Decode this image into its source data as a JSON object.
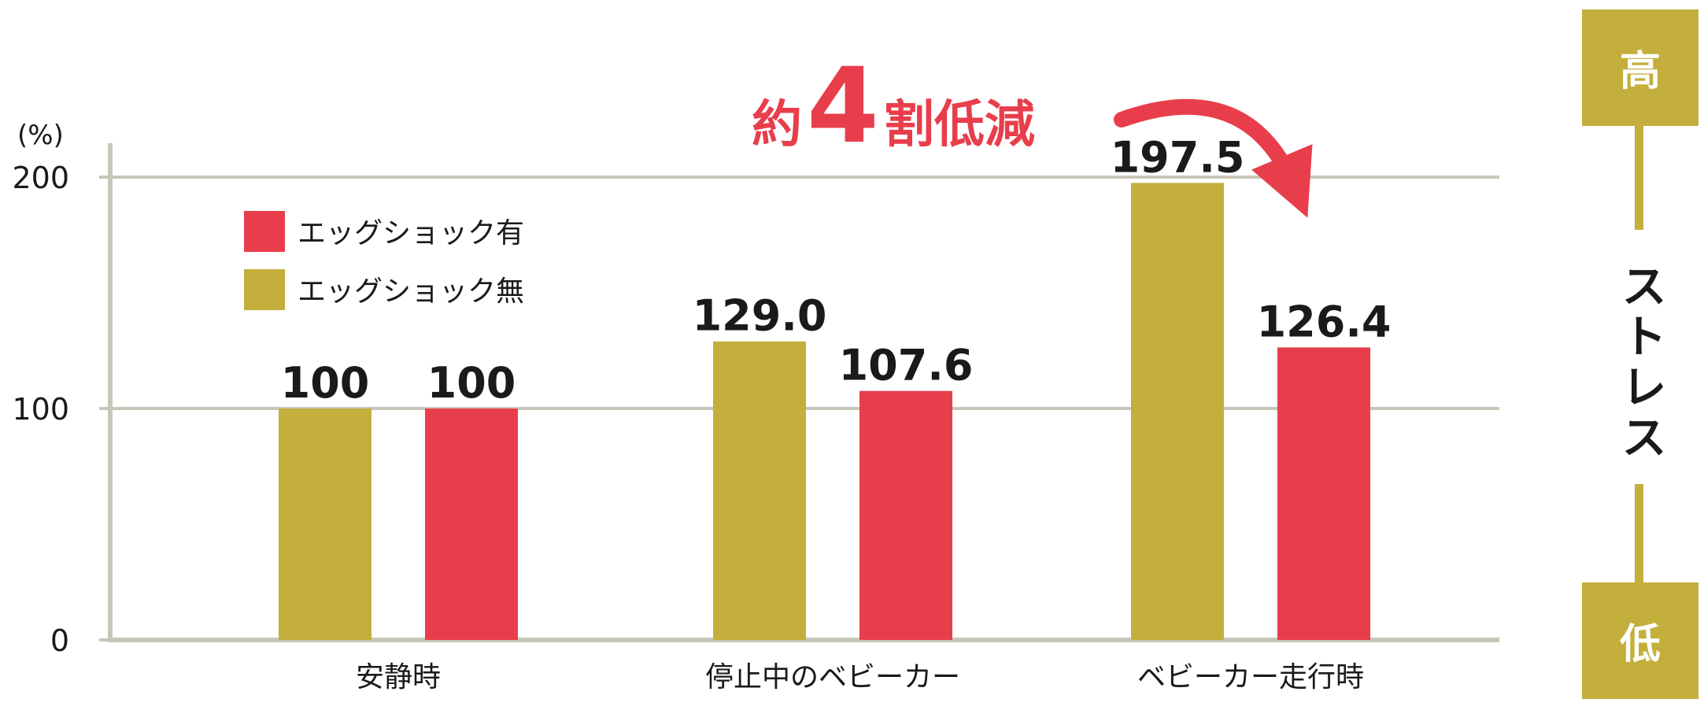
{
  "chart_data": {
    "type": "bar",
    "categories": [
      "安静時",
      "停止中のベビーカー",
      "ベビーカー走行時"
    ],
    "series": [
      {
        "name": "エッグショック無",
        "values": [
          100,
          129.0,
          197.5
        ],
        "labels": [
          "100",
          "129.0",
          "197.5"
        ],
        "color": "#c4ae3c"
      },
      {
        "name": "エッグショック有",
        "values": [
          100,
          107.6,
          126.4
        ],
        "labels": [
          "100",
          "107.6",
          "126.4"
        ],
        "color": "#e83e4b"
      }
    ],
    "legend_order": [
      1,
      0
    ],
    "legend_position": "top-left",
    "y_unit": "(%)",
    "ylim": [
      0,
      200
    ],
    "yticks": [
      0,
      100,
      200
    ],
    "ytick_labels": [
      "0",
      "100",
      "200"
    ],
    "grid": true,
    "annotation": {
      "pre": "約",
      "number": "4",
      "post": "割低減",
      "color": "#e83e4b"
    },
    "stress_scale": {
      "high": "高",
      "label": "ストレス",
      "low": "低",
      "color": "#c4ae3c"
    },
    "colors": {
      "axis": "#c9c5b8",
      "gridline": "#c9c5b8",
      "text": "#1a1a1a"
    }
  }
}
